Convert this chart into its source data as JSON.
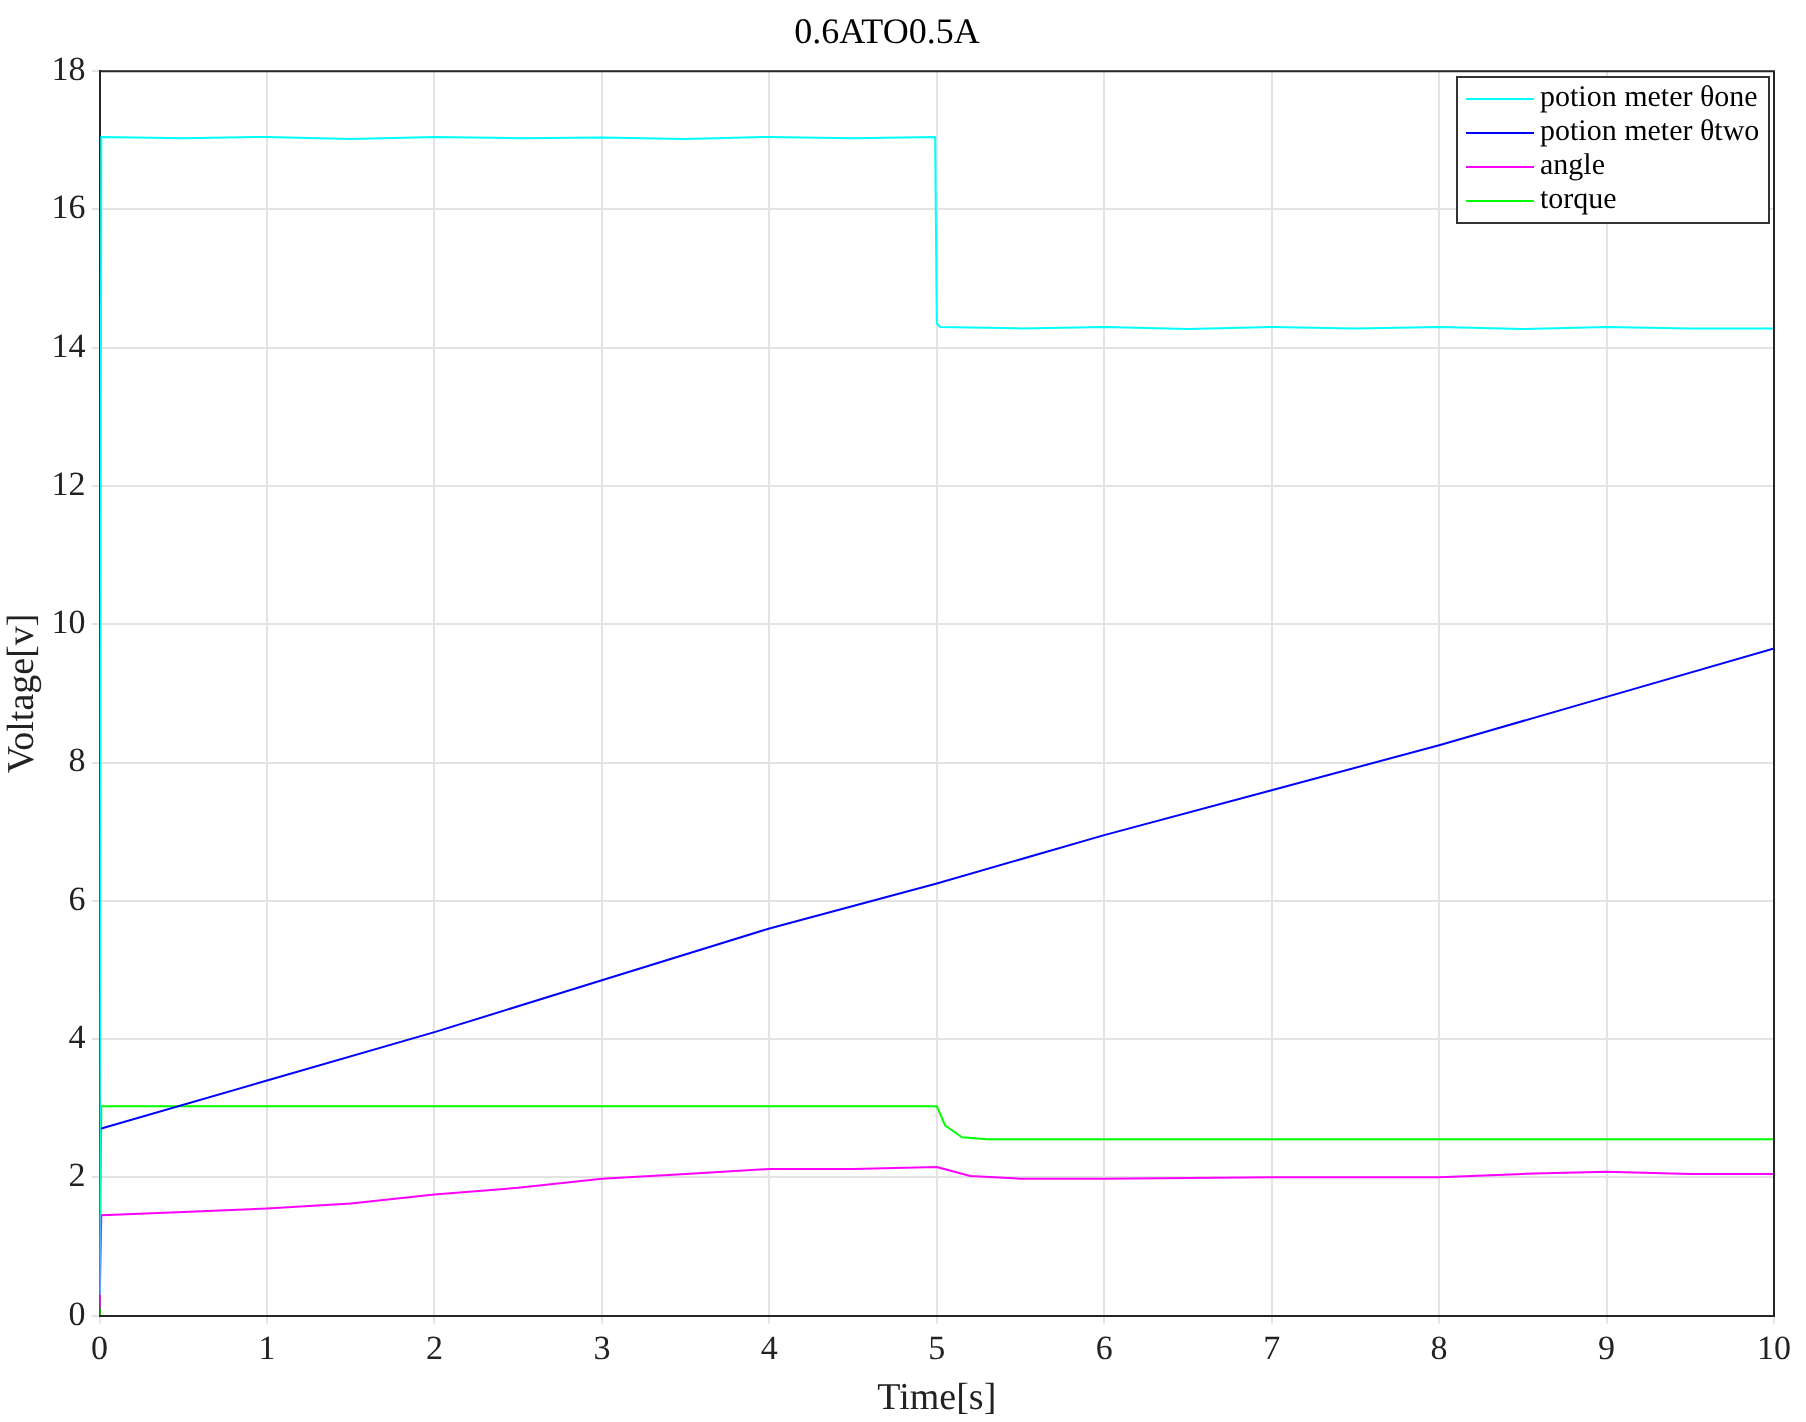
{
  "chart_data": {
    "type": "line",
    "title": "0.6ATO0.5A",
    "xlabel": "Time[s]",
    "ylabel": "Voltage[v]",
    "xlim": [
      0,
      10
    ],
    "xticks": [
      0,
      1,
      2,
      3,
      4,
      5,
      6,
      7,
      8,
      9,
      10
    ],
    "ylim": [
      0,
      18
    ],
    "yticks": [
      0,
      2,
      4,
      6,
      8,
      10,
      12,
      14,
      16,
      18
    ],
    "grid": true,
    "legend": "top right",
    "marker": "none",
    "line_style": "solid",
    "series": [
      {
        "name": "potion meter θone",
        "color": "#00ffff",
        "x": [
          0,
          0.01,
          0.5,
          1,
          1.5,
          2,
          2.5,
          3,
          3.5,
          4,
          4.5,
          4.99,
          5,
          5.02,
          5.5,
          6,
          6.5,
          7,
          7.5,
          8,
          8.5,
          9,
          9.5,
          10
        ],
        "values": [
          0.3,
          17.05,
          17.03,
          17.05,
          17.02,
          17.05,
          17.03,
          17.04,
          17.02,
          17.05,
          17.03,
          17.05,
          14.35,
          14.3,
          14.28,
          14.3,
          14.27,
          14.3,
          14.28,
          14.3,
          14.27,
          14.3,
          14.28,
          14.28
        ]
      },
      {
        "name": "potion meter θtwo",
        "color": "#0000ff",
        "x": [
          0,
          1,
          2,
          3,
          4,
          5,
          6,
          7,
          8,
          9,
          10
        ],
        "values": [
          2.7,
          3.4,
          4.1,
          4.85,
          5.6,
          6.25,
          6.95,
          7.6,
          8.25,
          8.95,
          9.65
        ]
      },
      {
        "name": "angle",
        "color": "#ff00ff",
        "x": [
          0,
          0.01,
          0.5,
          1,
          1.5,
          2,
          2.5,
          3,
          3.5,
          4,
          4.5,
          5,
          5.2,
          5.5,
          6,
          7,
          8,
          8.5,
          9,
          9.5,
          10
        ],
        "values": [
          0.1,
          1.45,
          1.5,
          1.55,
          1.62,
          1.75,
          1.85,
          1.98,
          2.05,
          2.12,
          2.12,
          2.15,
          2.02,
          1.98,
          1.98,
          2.0,
          2.0,
          2.05,
          2.08,
          2.05,
          2.05
        ]
      },
      {
        "name": "torque",
        "color": "#00ff00",
        "x": [
          0,
          0.01,
          2.5,
          5,
          5.05,
          5.15,
          5.3,
          7.5,
          10
        ],
        "values": [
          0,
          3.03,
          3.03,
          3.03,
          2.75,
          2.58,
          2.55,
          2.55,
          2.55
        ]
      }
    ]
  }
}
